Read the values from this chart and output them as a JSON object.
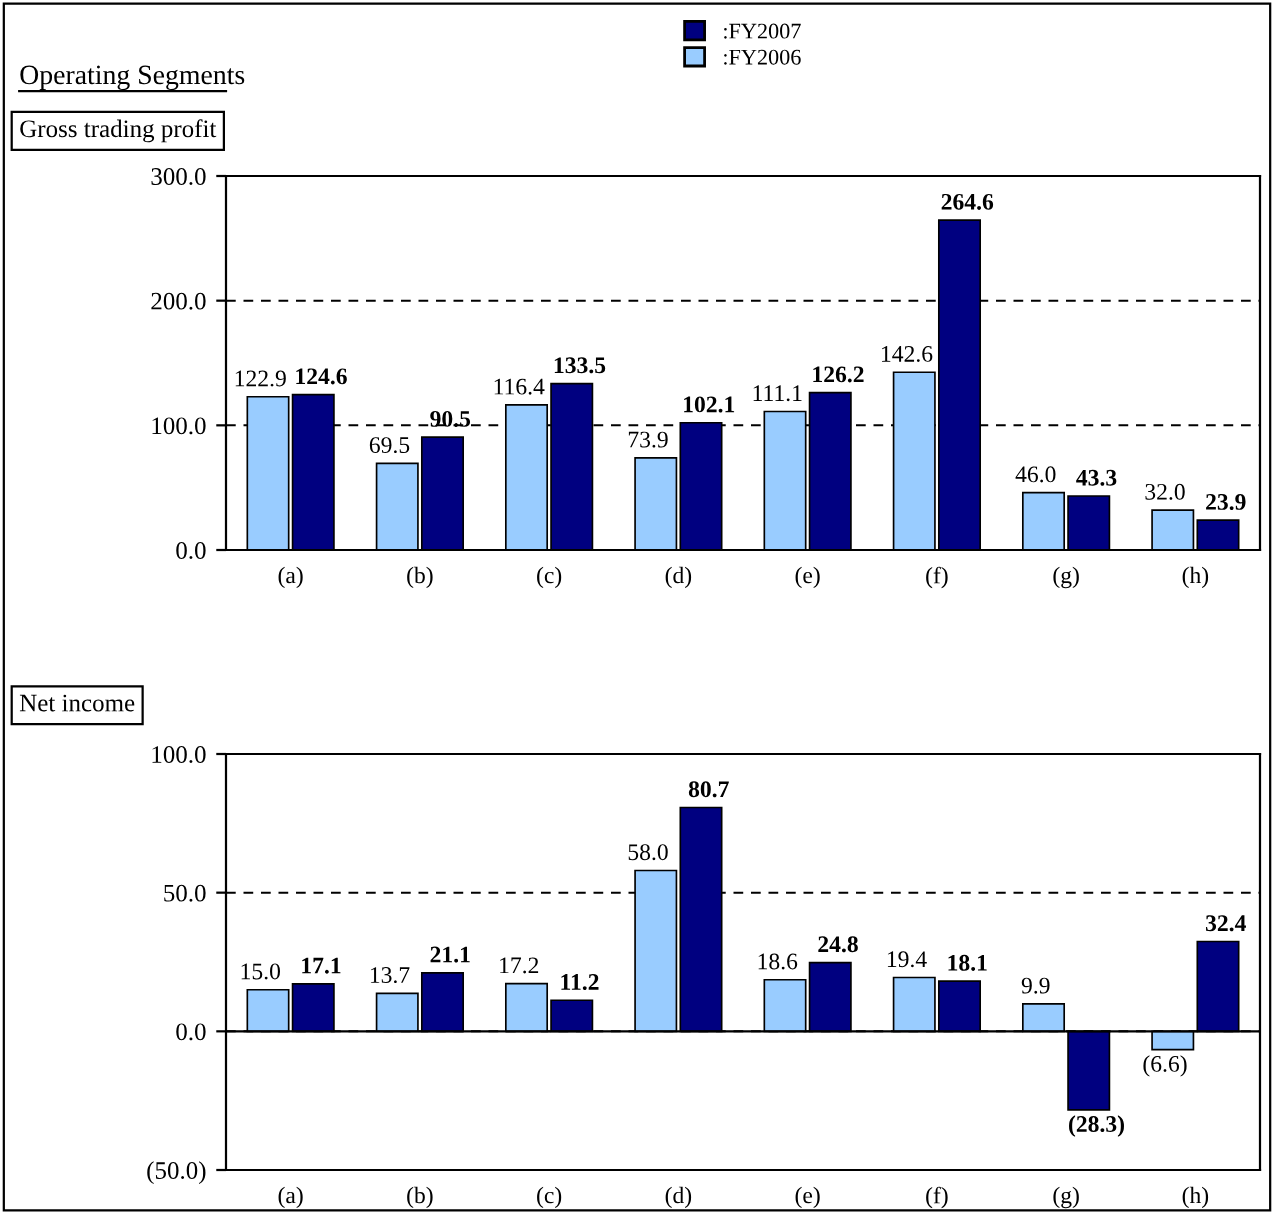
{
  "chart_data": [
    {
      "type": "bar",
      "title": "Gross trading profit",
      "annotations": [
        "Operating Segments"
      ],
      "categories": [
        "(a)",
        "(b)",
        "(c)",
        "(d)",
        "(e)",
        "(f)",
        "(g)",
        "(h)"
      ],
      "series": [
        {
          "name": ":FY2006",
          "color": "#99ccff",
          "values": [
            122.9,
            69.5,
            116.4,
            73.9,
            111.1,
            142.6,
            46.0,
            32.0
          ],
          "value_labels": [
            "122.9",
            "69.5",
            "116.4",
            "73.9",
            "111.1",
            "142.6",
            "46.0",
            "32.0"
          ]
        },
        {
          "name": ":FY2007",
          "color": "#000080",
          "values": [
            124.6,
            90.5,
            133.5,
            102.1,
            126.2,
            264.6,
            43.3,
            23.9
          ],
          "value_labels": [
            "124.6",
            "90.5",
            "133.5",
            "102.1",
            "126.2",
            "264.6",
            "43.3",
            "23.9"
          ]
        }
      ],
      "ylim": [
        0,
        300
      ],
      "yticks": [
        {
          "value": 0,
          "label": "0.0"
        },
        {
          "value": 100,
          "label": "100.0"
        },
        {
          "value": 200,
          "label": "200.0"
        },
        {
          "value": 300,
          "label": "300.0"
        }
      ],
      "grid": "y",
      "legend": "top"
    },
    {
      "type": "bar",
      "title": "Net income",
      "categories": [
        "(a)",
        "(b)",
        "(c)",
        "(d)",
        "(e)",
        "(f)",
        "(g)",
        "(h)"
      ],
      "series": [
        {
          "color": "#99ccff",
          "values": [
            15.0,
            13.7,
            17.2,
            58.0,
            18.6,
            19.4,
            9.9,
            -6.6
          ],
          "value_labels": [
            "15.0",
            "13.7",
            "17.2",
            "58.0",
            "18.6",
            "19.4",
            "9.9",
            "(6.6)"
          ]
        },
        {
          "color": "#000080",
          "values": [
            17.1,
            21.1,
            11.2,
            80.7,
            24.8,
            18.1,
            -28.3,
            32.4
          ],
          "value_labels": [
            "17.1",
            "21.1",
            "11.2",
            "80.7",
            "24.8",
            "18.1",
            "(28.3)",
            "32.4"
          ]
        }
      ],
      "ylim": [
        -50,
        100
      ],
      "yticks": [
        {
          "value": -50,
          "label": "(50.0)"
        },
        {
          "value": 0,
          "label": "0.0"
        },
        {
          "value": 50,
          "label": "50.0"
        },
        {
          "value": 100,
          "label": "100.0"
        }
      ],
      "grid": "y",
      "legend": false
    }
  ]
}
